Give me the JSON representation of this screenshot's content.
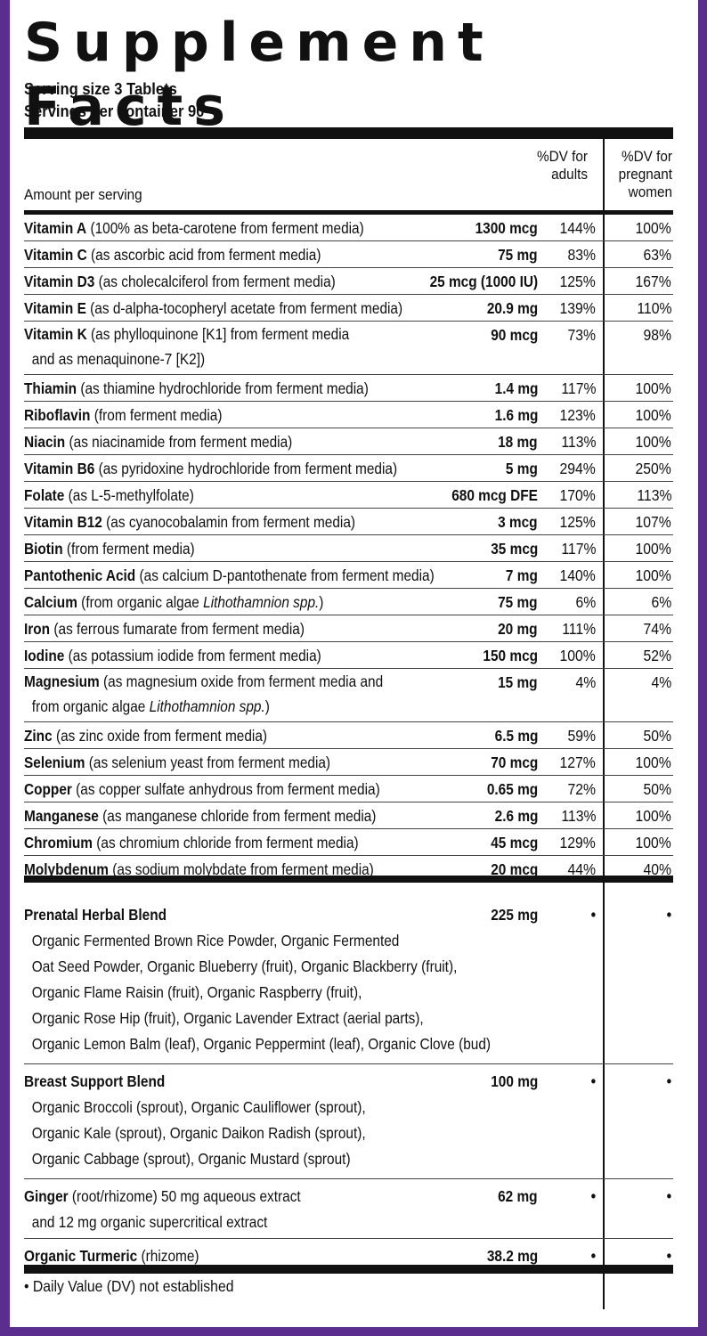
{
  "title": "Supplement Facts",
  "serving_size": "Serving size 3 Tablets",
  "servings_per_container": "Servings per container 90",
  "headers": {
    "amount": "Amount per serving",
    "dv_adults": "%DV for adults",
    "dv_pregnant": "%DV for pregnant women"
  },
  "nutrients": [
    {
      "name": "Vitamin A",
      "desc": " (100% as beta-carotene from ferment media)",
      "amount": "1300 mcg",
      "dv_adults": "144%",
      "dv_pregnant": "100%"
    },
    {
      "name": "Vitamin C",
      "desc": " (as ascorbic acid from ferment media)",
      "amount": "75 mg",
      "dv_adults": "83%",
      "dv_pregnant": "63%"
    },
    {
      "name": "Vitamin D3",
      "desc": " (as cholecalciferol from ferment media)",
      "amount": "25 mcg (1000 IU)",
      "dv_adults": "125%",
      "dv_pregnant": "167%"
    },
    {
      "name": "Vitamin E",
      "desc": " (as d-alpha-tocopheryl acetate from ferment media)",
      "amount": "20.9 mg",
      "dv_adults": "139%",
      "dv_pregnant": "110%"
    },
    {
      "name": "Vitamin K",
      "desc": " (as phylloquinone [K1] from ferment media",
      "desc2": "and as menaquinone-7 [K2])",
      "amount": "90 mcg",
      "dv_adults": "73%",
      "dv_pregnant": "98%"
    },
    {
      "name": "Thiamin",
      "desc": " (as thiamine hydrochloride from ferment media)",
      "amount": "1.4 mg",
      "dv_adults": "117%",
      "dv_pregnant": "100%"
    },
    {
      "name": "Riboflavin",
      "desc": " (from ferment media)",
      "amount": "1.6 mg",
      "dv_adults": "123%",
      "dv_pregnant": "100%"
    },
    {
      "name": "Niacin",
      "desc": " (as niacinamide from ferment media)",
      "amount": "18 mg",
      "dv_adults": "113%",
      "dv_pregnant": "100%"
    },
    {
      "name": "Vitamin B6",
      "desc": " (as pyridoxine hydrochloride from ferment media)",
      "amount": "5 mg",
      "dv_adults": "294%",
      "dv_pregnant": "250%"
    },
    {
      "name": "Folate",
      "desc": " (as L-5-methylfolate)",
      "amount": "680 mcg DFE",
      "dv_adults": "170%",
      "dv_pregnant": "113%"
    },
    {
      "name": "Vitamin B12",
      "desc": " (as cyanocobalamin from ferment media)",
      "amount": "3 mcg",
      "dv_adults": "125%",
      "dv_pregnant": "107%"
    },
    {
      "name": "Biotin",
      "desc": " (from ferment media)",
      "amount": "35 mcg",
      "dv_adults": "117%",
      "dv_pregnant": "100%"
    },
    {
      "name": "Pantothenic Acid",
      "desc": " (as calcium D-pantothenate from ferment media)",
      "amount": "7 mg",
      "dv_adults": "140%",
      "dv_pregnant": "100%"
    },
    {
      "name": "Calcium",
      "desc": " (from organic algae ",
      "desc_italic": "Lithothamnion spp.",
      "desc_end": ")",
      "amount": "75 mg",
      "dv_adults": "6%",
      "dv_pregnant": "6%"
    },
    {
      "name": "Iron",
      "desc": " (as ferrous fumarate from ferment media)",
      "amount": "20 mg",
      "dv_adults": "111%",
      "dv_pregnant": "74%"
    },
    {
      "name": "Iodine",
      "desc": " (as potassium iodide from ferment media)",
      "amount": "150 mcg",
      "dv_adults": "100%",
      "dv_pregnant": "52%"
    },
    {
      "name": "Magnesium",
      "desc": " (as magnesium oxide from ferment media and",
      "desc2": "from organic algae ",
      "desc2_italic": "Lithothamnion spp.",
      "desc2_end": ")",
      "amount": "15 mg",
      "dv_adults": "4%",
      "dv_pregnant": "4%"
    },
    {
      "name": "Zinc",
      "desc": " (as zinc oxide from ferment media)",
      "amount": "6.5 mg",
      "dv_adults": "59%",
      "dv_pregnant": "50%"
    },
    {
      "name": "Selenium",
      "desc": " (as selenium yeast from ferment media)",
      "amount": "70 mcg",
      "dv_adults": "127%",
      "dv_pregnant": "100%"
    },
    {
      "name": "Copper",
      "desc": " (as copper sulfate anhydrous from ferment media)",
      "amount": "0.65 mg",
      "dv_adults": "72%",
      "dv_pregnant": "50%"
    },
    {
      "name": "Manganese",
      "desc": " (as manganese chloride from ferment media)",
      "amount": "2.6 mg",
      "dv_adults": "113%",
      "dv_pregnant": "100%"
    },
    {
      "name": "Chromium",
      "desc": " (as chromium chloride from ferment media)",
      "amount": "45 mcg",
      "dv_adults": "129%",
      "dv_pregnant": "100%"
    },
    {
      "name": "Molybdenum",
      "desc": " (as sodium molybdate from ferment media)",
      "amount": "20 mcg",
      "dv_adults": "44%",
      "dv_pregnant": "40%"
    }
  ],
  "blends": [
    {
      "name": "Prenatal Herbal Blend",
      "amount": "225 mg",
      "dv_adults": "•",
      "dv_pregnant": "•",
      "lines": [
        "Organic Fermented Brown Rice Powder, Organic Fermented",
        "Oat Seed Powder,  Organic Blueberry (fruit), Organic Blackberry (fruit),",
        "Organic Flame Raisin (fruit), Organic Raspberry (fruit),",
        "Organic Rose Hip (fruit), Organic Lavender Extract (aerial parts),",
        "Organic Lemon Balm (leaf), Organic Peppermint (leaf), Organic Clove (bud)"
      ]
    },
    {
      "name": "Breast Support Blend",
      "amount": "100 mg",
      "dv_adults": "•",
      "dv_pregnant": "•",
      "lines": [
        "Organic Broccoli (sprout), Organic Cauliflower (sprout),",
        "Organic Kale (sprout), Organic Daikon Radish (sprout),",
        "Organic Cabbage (sprout), Organic Mustard (sprout)"
      ]
    }
  ],
  "ginger": {
    "name": "Ginger",
    "desc": " (root/rhizome) 50 mg aqueous extract",
    "desc2": "and 12 mg organic supercritical extract",
    "amount": "62 mg",
    "dv_adults": "•",
    "dv_pregnant": "•"
  },
  "turmeric": {
    "name": "Organic Turmeric",
    "desc": " (rhizome)",
    "amount": "38.2 mg",
    "dv_adults": "•",
    "dv_pregnant": "•"
  },
  "footnote": "• Daily Value (DV) not established"
}
